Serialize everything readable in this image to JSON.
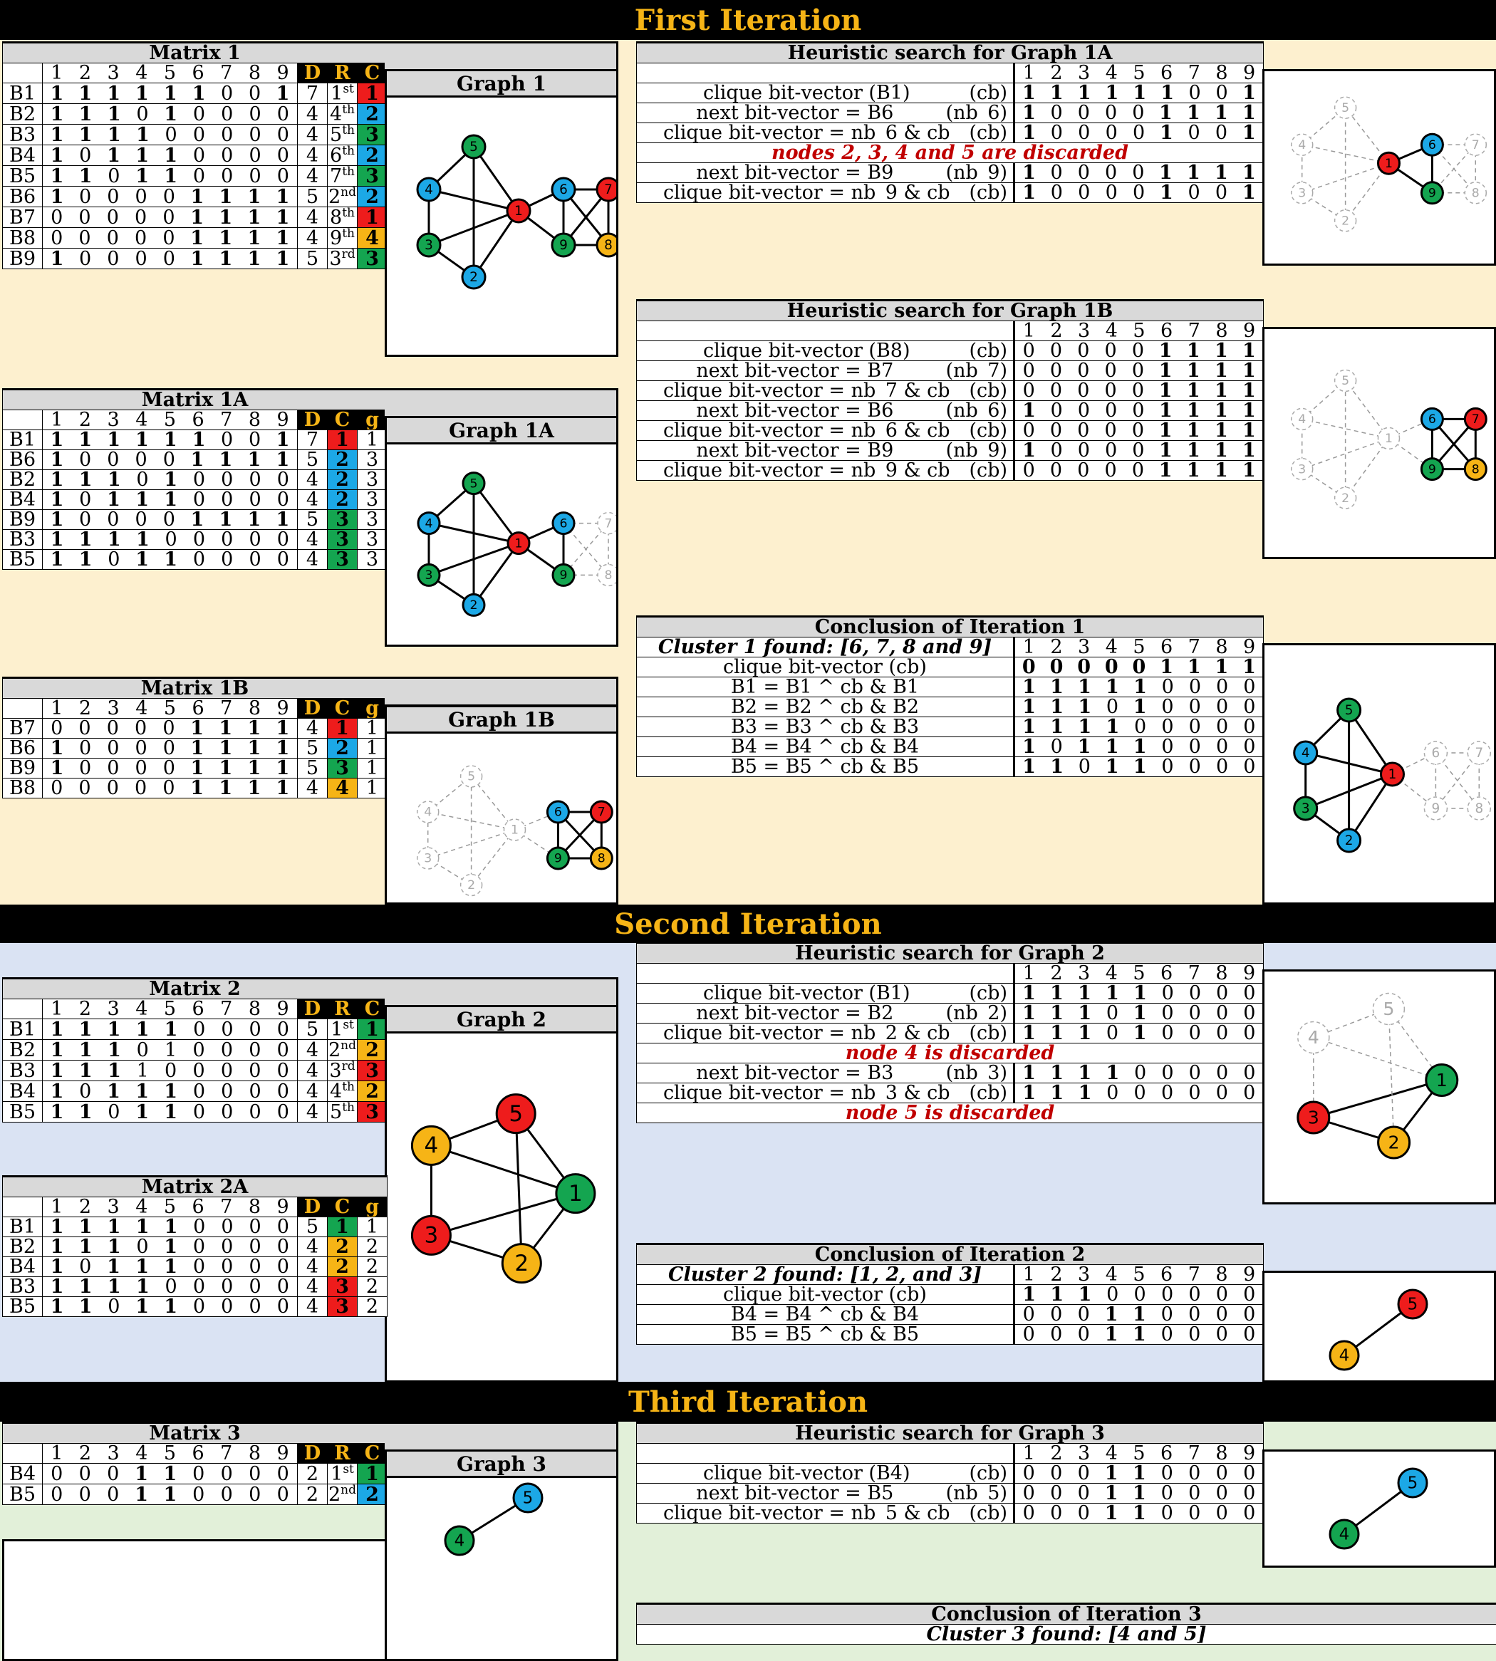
{
  "colors": {
    "red": "#ee1c1c",
    "blue": "#1ca8e6",
    "green": "#14a550",
    "yellow": "#f6b416",
    "grey": "#cccccc",
    "bg_yellow": "#fdf0cf",
    "bg_blue": "#dae3f3",
    "bg_green": "#e2f0d9",
    "banner": "#000000",
    "banner_text": "#f6b416"
  },
  "titles": {
    "iter1": "First Iteration",
    "iter2": "Second Iteration",
    "iter3": "Third Iteration"
  },
  "col_digits": [
    "1",
    "2",
    "3",
    "4",
    "5",
    "6",
    "7",
    "8",
    "9"
  ],
  "hdr": {
    "D": "D",
    "R": "R",
    "C": "C",
    "g": "g"
  },
  "matrix1": {
    "title": "Matrix 1",
    "graph_title": "Graph 1",
    "rows": [
      {
        "label": "B1",
        "bits": "111111001",
        "D": "7",
        "R": "1",
        "Rsup": "st",
        "C": "1",
        "color": "red"
      },
      {
        "label": "B2",
        "bits": "111010000",
        "D": "4",
        "R": "4",
        "Rsup": "th",
        "C": "2",
        "color": "blue"
      },
      {
        "label": "B3",
        "bits": "111100000",
        "D": "4",
        "R": "5",
        "Rsup": "th",
        "C": "3",
        "color": "green"
      },
      {
        "label": "B4",
        "bits": "101110000",
        "D": "4",
        "R": "6",
        "Rsup": "th",
        "C": "2",
        "color": "blue"
      },
      {
        "label": "B5",
        "bits": "110110000",
        "D": "4",
        "R": "7",
        "Rsup": "th",
        "C": "3",
        "color": "green"
      },
      {
        "label": "B6",
        "bits": "100001111",
        "D": "5",
        "R": "2",
        "Rsup": "nd",
        "C": "2",
        "color": "blue"
      },
      {
        "label": "B7",
        "bits": "000001111",
        "D": "4",
        "R": "8",
        "Rsup": "th",
        "C": "1",
        "color": "red"
      },
      {
        "label": "B8",
        "bits": "000001111",
        "D": "4",
        "R": "9",
        "Rsup": "th",
        "C": "4",
        "color": "yellow"
      },
      {
        "label": "B9",
        "bits": "100001111",
        "D": "5",
        "R": "3",
        "Rsup": "rd",
        "C": "3",
        "color": "green"
      }
    ]
  },
  "matrix1a": {
    "title": "Matrix 1A",
    "graph_title": "Graph 1A",
    "rows": [
      {
        "label": "B1",
        "bits": "111111001",
        "D": "7",
        "C": "1",
        "g": "1",
        "color": "red"
      },
      {
        "label": "B6",
        "bits": "100001111",
        "D": "5",
        "C": "2",
        "g": "3",
        "color": "blue"
      },
      {
        "label": "B2",
        "bits": "111010000",
        "D": "4",
        "C": "2",
        "g": "3",
        "color": "blue"
      },
      {
        "label": "B4",
        "bits": "101110000",
        "D": "4",
        "C": "2",
        "g": "3",
        "color": "blue"
      },
      {
        "label": "B9",
        "bits": "100001111",
        "D": "5",
        "C": "3",
        "g": "3",
        "color": "green"
      },
      {
        "label": "B3",
        "bits": "111100000",
        "D": "4",
        "C": "3",
        "g": "3",
        "color": "green"
      },
      {
        "label": "B5",
        "bits": "110110000",
        "D": "4",
        "C": "3",
        "g": "3",
        "color": "green"
      }
    ]
  },
  "matrix1b": {
    "title": "Matrix 1B",
    "graph_title": "Graph 1B",
    "rows": [
      {
        "label": "B7",
        "bits": "000001111",
        "D": "4",
        "C": "1",
        "g": "1",
        "color": "red"
      },
      {
        "label": "B6",
        "bits": "100001111",
        "D": "5",
        "C": "2",
        "g": "1",
        "color": "blue"
      },
      {
        "label": "B9",
        "bits": "100001111",
        "D": "5",
        "C": "3",
        "g": "1",
        "color": "green"
      },
      {
        "label": "B8",
        "bits": "000001111",
        "D": "4",
        "C": "4",
        "g": "1",
        "color": "yellow"
      }
    ]
  },
  "search1a": {
    "title": "Heuristic search for Graph 1A",
    "rows": [
      {
        "expr": "clique bit-vector  (B1)",
        "tag": "(cb)",
        "bits": "111111001"
      },
      {
        "expr": "next bit-vector = B6",
        "tag": "(nb_6)",
        "bits": "100001111"
      },
      {
        "expr": "clique bit-vector = nb_6 & cb",
        "tag": "(cb)",
        "bits": "100001001"
      },
      {
        "note": "nodes 2, 3, 4 and 5 are discarded"
      },
      {
        "expr": "next bit-vector = B9",
        "tag": "(nb_9)",
        "bits": "100001111"
      },
      {
        "expr": "clique bit-vector = nb_9 & cb",
        "tag": "(cb)",
        "bits": "100001001"
      }
    ]
  },
  "search1b": {
    "title": "Heuristic search for Graph 1B",
    "rows": [
      {
        "expr": "clique bit-vector  (B8)",
        "tag": "(cb)",
        "bits": "000001111"
      },
      {
        "expr": "next bit-vector = B7",
        "tag": "(nb_7)",
        "bits": "000001111"
      },
      {
        "expr": "clique bit-vector = nb_7 & cb",
        "tag": "(cb)",
        "bits": "000001111"
      },
      {
        "expr": "next bit-vector = B6",
        "tag": "(nb_6)",
        "bits": "100001111"
      },
      {
        "expr": "clique bit-vector = nb_6 & cb",
        "tag": "(cb)",
        "bits": "000001111"
      },
      {
        "expr": "next bit-vector = B9",
        "tag": "(nb_9)",
        "bits": "100001111"
      },
      {
        "expr": "clique bit-vector = nb_9 & cb",
        "tag": "(cb)",
        "bits": "000001111"
      }
    ]
  },
  "conclusion1": {
    "title": "Conclusion of Iteration 1",
    "found": "Cluster 1 found: [6, 7, 8 and 9]",
    "rows": [
      {
        "expr": "clique bit-vector (cb)",
        "bits": "000001111",
        "boldmask": "111111111"
      },
      {
        "expr": "B1 = B1 ^ cb & B1",
        "bits": "111110000"
      },
      {
        "expr": "B2 = B2 ^ cb & B2",
        "bits": "111010000"
      },
      {
        "expr": "B3 = B3 ^ cb & B3",
        "bits": "111100000"
      },
      {
        "expr": "B4 = B4 ^ cb & B4",
        "bits": "101110000"
      },
      {
        "expr": "B5 = B5 ^ cb & B5",
        "bits": "110110000"
      }
    ]
  },
  "matrix2": {
    "title": "Matrix 2",
    "graph_title": "Graph 2",
    "rows": [
      {
        "label": "B1",
        "bits": "111110000",
        "D": "5",
        "R": "1",
        "Rsup": "st",
        "C": "1",
        "color": "green"
      },
      {
        "label": "B2",
        "bits": "111010000",
        "boldmask": "111000000",
        "D": "4",
        "R": "2",
        "Rsup": "nd",
        "C": "2",
        "color": "yellow"
      },
      {
        "label": "B3",
        "bits": "111100000",
        "boldmask": "111000000",
        "D": "4",
        "R": "3",
        "Rsup": "rd",
        "C": "3",
        "color": "red"
      },
      {
        "label": "B4",
        "bits": "101110000",
        "D": "4",
        "R": "4",
        "Rsup": "th",
        "C": "2",
        "color": "yellow"
      },
      {
        "label": "B5",
        "bits": "110110000",
        "D": "4",
        "R": "5",
        "Rsup": "th",
        "C": "3",
        "color": "red"
      }
    ]
  },
  "matrix2a": {
    "title": "Matrix 2A",
    "rows": [
      {
        "label": "B1",
        "bits": "111110000",
        "D": "5",
        "C": "1",
        "g": "1",
        "color": "green"
      },
      {
        "label": "B2",
        "bits": "111010000",
        "D": "4",
        "C": "2",
        "g": "2",
        "color": "yellow"
      },
      {
        "label": "B4",
        "bits": "101110000",
        "D": "4",
        "C": "2",
        "g": "2",
        "color": "yellow"
      },
      {
        "label": "B3",
        "bits": "111100000",
        "D": "4",
        "C": "3",
        "g": "2",
        "color": "red"
      },
      {
        "label": "B5",
        "bits": "110110000",
        "D": "4",
        "C": "3",
        "g": "2",
        "color": "red"
      }
    ]
  },
  "search2": {
    "title": "Heuristic search for Graph 2",
    "rows": [
      {
        "expr": "clique bit-vector  (B1)",
        "tag": "(cb)",
        "bits": "111110000"
      },
      {
        "expr": "next bit-vector = B2",
        "tag": "(nb_2)",
        "bits": "111010000"
      },
      {
        "expr": "clique bit-vector = nb_2 & cb",
        "tag": "(cb)",
        "bits": "111010000"
      },
      {
        "note": "node 4 is discarded"
      },
      {
        "expr": "next bit-vector = B3",
        "tag": "(nb_3)",
        "bits": "111100000"
      },
      {
        "expr": "clique bit-vector = nb_3 & cb",
        "tag": "(cb)",
        "bits": "111000000"
      },
      {
        "note": "node 5 is discarded"
      }
    ]
  },
  "conclusion2": {
    "title": "Conclusion of Iteration 2",
    "found": "Cluster 2 found: [1, 2, and 3]",
    "rows": [
      {
        "expr": "clique bit-vector (cb)",
        "bits": "111000000"
      },
      {
        "expr": "B4 = B4 ^ cb & B4",
        "bits": "000110000"
      },
      {
        "expr": "B5 = B5 ^ cb & B5",
        "bits": "000110000"
      }
    ]
  },
  "matrix3": {
    "title": "Matrix 3",
    "graph_title": "Graph 3",
    "rows": [
      {
        "label": "B4",
        "bits": "000110000",
        "D": "2",
        "R": "1",
        "Rsup": "st",
        "C": "1",
        "color": "green"
      },
      {
        "label": "B5",
        "bits": "000110000",
        "D": "2",
        "R": "2",
        "Rsup": "nd",
        "C": "2",
        "color": "blue"
      }
    ]
  },
  "search3": {
    "title": "Heuristic search for Graph 3",
    "rows": [
      {
        "expr": "clique bit-vector  (B4)",
        "tag": "(cb)",
        "bits": "000110000"
      },
      {
        "expr": "next bit-vector = B5",
        "tag": "(nb_5)",
        "bits": "000110000"
      },
      {
        "expr": "clique bit-vector = nb_5 & cb",
        "tag": "(cb)",
        "bits": "000110000"
      }
    ]
  },
  "conclusion3": {
    "title": "Conclusion of Iteration 3",
    "found": "Cluster 3  found: [4 and 5]"
  },
  "graphs": {
    "g1": {
      "nodes": {
        "1": "red",
        "2": "blue",
        "3": "green",
        "4": "blue",
        "5": "green",
        "6": "blue",
        "7": "red",
        "8": "yellow",
        "9": "green"
      },
      "ghost": []
    },
    "g1a": {
      "nodes": {
        "1": "red",
        "2": "blue",
        "3": "green",
        "4": "blue",
        "5": "green",
        "6": "blue",
        "7": "grey",
        "8": "grey",
        "9": "green"
      },
      "ghost": [
        "7",
        "8"
      ]
    },
    "g1b": {
      "nodes": {
        "1": "grey",
        "2": "grey",
        "3": "grey",
        "4": "grey",
        "5": "grey",
        "6": "blue",
        "7": "red",
        "8": "yellow",
        "9": "green"
      },
      "ghost": [
        "1",
        "2",
        "3",
        "4",
        "5"
      ]
    },
    "s1a": {
      "nodes": {
        "1": "red",
        "2": "grey",
        "3": "grey",
        "4": "grey",
        "5": "grey",
        "6": "blue",
        "7": "grey",
        "8": "grey",
        "9": "green"
      },
      "ghost": [
        "2",
        "3",
        "4",
        "5",
        "7",
        "8"
      ]
    },
    "s1b": {
      "nodes": {
        "1": "grey",
        "2": "grey",
        "3": "grey",
        "4": "grey",
        "5": "grey",
        "6": "blue",
        "7": "red",
        "8": "yellow",
        "9": "green"
      },
      "ghost": [
        "1",
        "2",
        "3",
        "4",
        "5"
      ]
    },
    "c1": {
      "nodes": {
        "1": "red",
        "2": "blue",
        "3": "green",
        "4": "blue",
        "5": "green",
        "6": "grey",
        "7": "grey",
        "8": "grey",
        "9": "grey"
      },
      "ghost": [
        "6",
        "7",
        "8",
        "9"
      ]
    },
    "g2": {
      "nodes": {
        "1": "green",
        "2": "yellow",
        "3": "red",
        "4": "yellow",
        "5": "red"
      }
    },
    "s2": {
      "nodes": {
        "1": "green",
        "2": "yellow",
        "3": "red",
        "4": "grey",
        "5": "grey"
      },
      "ghost": [
        "4",
        "5"
      ]
    },
    "c2": {
      "nodes": {
        "4": "yellow",
        "5": "red"
      }
    },
    "g3": {
      "nodes": {
        "4": "green",
        "5": "blue"
      }
    },
    "s3": {
      "nodes": {
        "4": "green",
        "5": "blue"
      }
    }
  }
}
